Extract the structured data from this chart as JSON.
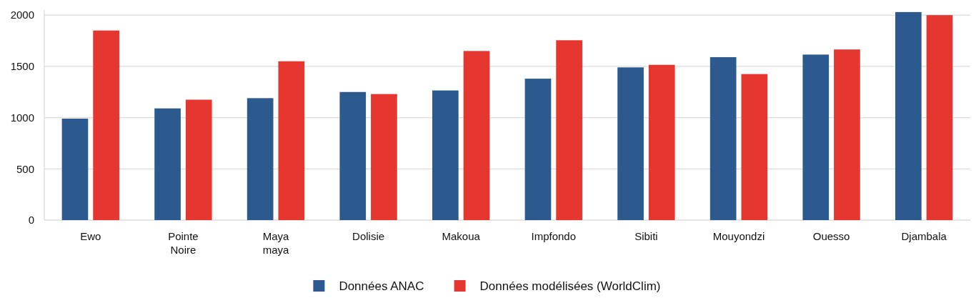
{
  "chart_data": {
    "type": "bar",
    "categories": [
      "Ewo",
      "Pointe\nNoire",
      "Maya\nmaya",
      "Dolisie",
      "Makoua",
      "Impfondo",
      "Sibiti",
      "Mouyondzi",
      "Ouesso",
      "Djambala"
    ],
    "series": [
      {
        "name": "Données ANAC",
        "color": "#2d5a8e",
        "values": [
          990,
          1090,
          1190,
          1250,
          1265,
          1380,
          1490,
          1590,
          1615,
          2030
        ]
      },
      {
        "name": "Données modélisées (WorldClim)",
        "color": "#e5372f",
        "values": [
          1850,
          1175,
          1550,
          1230,
          1650,
          1755,
          1515,
          1425,
          1665,
          2000
        ]
      }
    ],
    "ylim": [
      0,
      2050
    ],
    "yticks": [
      0,
      500,
      1000,
      1500,
      2000
    ],
    "grid": "y",
    "legend": "bottom"
  }
}
